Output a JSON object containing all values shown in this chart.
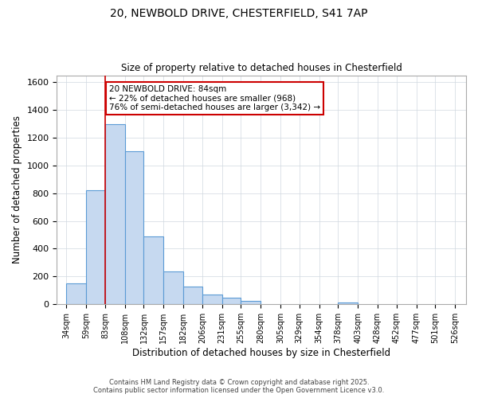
{
  "title_line1": "20, NEWBOLD DRIVE, CHESTERFIELD, S41 7AP",
  "title_line2": "Size of property relative to detached houses in Chesterfield",
  "xlabel": "Distribution of detached houses by size in Chesterfield",
  "ylabel": "Number of detached properties",
  "bar_left_edges": [
    34,
    59,
    83,
    108,
    132,
    157,
    182,
    206,
    231,
    255,
    280,
    305,
    329,
    354,
    378,
    403,
    428,
    452,
    477,
    501
  ],
  "bar_widths": [
    25,
    24,
    25,
    24,
    25,
    25,
    24,
    25,
    24,
    25,
    25,
    24,
    25,
    24,
    25,
    25,
    24,
    25,
    24,
    25
  ],
  "bar_heights": [
    150,
    820,
    1300,
    1100,
    490,
    235,
    130,
    70,
    45,
    25,
    0,
    0,
    0,
    0,
    12,
    0,
    0,
    0,
    0,
    0
  ],
  "bar_facecolor": "#c6d9f0",
  "bar_edgecolor": "#5b9bd5",
  "xtick_labels": [
    "34sqm",
    "59sqm",
    "83sqm",
    "108sqm",
    "132sqm",
    "157sqm",
    "182sqm",
    "206sqm",
    "231sqm",
    "255sqm",
    "280sqm",
    "305sqm",
    "329sqm",
    "354sqm",
    "378sqm",
    "403sqm",
    "428sqm",
    "452sqm",
    "477sqm",
    "501sqm",
    "526sqm"
  ],
  "xtick_positions": [
    34,
    59,
    83,
    108,
    132,
    157,
    182,
    206,
    231,
    255,
    280,
    305,
    329,
    354,
    378,
    403,
    428,
    452,
    477,
    501,
    526
  ],
  "ylim": [
    0,
    1650
  ],
  "xlim": [
    22,
    540
  ],
  "grid_color": "#d0d8e0",
  "property_line_x": 83,
  "property_line_color": "#cc0000",
  "annotation_text": "20 NEWBOLD DRIVE: 84sqm\n← 22% of detached houses are smaller (968)\n76% of semi-detached houses are larger (3,342) →",
  "annotation_box_color": "#cc0000",
  "footer_line1": "Contains HM Land Registry data © Crown copyright and database right 2025.",
  "footer_line2": "Contains public sector information licensed under the Open Government Licence v3.0.",
  "bg_color": "#ffffff",
  "plot_bg_color": "#ffffff"
}
